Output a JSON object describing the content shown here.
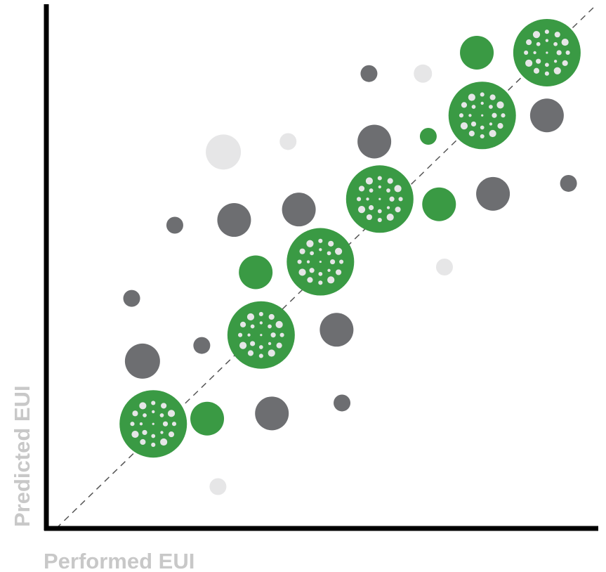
{
  "chart_data": {
    "type": "scatter",
    "title": "",
    "xlabel": "Performed EUI",
    "ylabel": "Predicted EUI",
    "xlim": [
      0,
      100
    ],
    "ylim": [
      0,
      100
    ],
    "grid": false,
    "legend": "none",
    "reference_line": {
      "style": "dashed",
      "from": [
        0,
        0
      ],
      "to": [
        100,
        100
      ]
    },
    "colors": {
      "axis": "#000000",
      "axis_label": "#c8c8c8",
      "reference_line": "#555555",
      "accent_green": "#3a9a44",
      "dark_gray": "#6d6e71",
      "light_gray": "#e6e6e7",
      "marker_icon": "#e6e6e7"
    },
    "points": [
      {
        "x": 18,
        "y": 20,
        "size": 48,
        "color": "accent_green",
        "icon": "dot-burst-icon"
      },
      {
        "x": 38,
        "y": 37,
        "size": 48,
        "color": "accent_green",
        "icon": "dot-burst-icon"
      },
      {
        "x": 49,
        "y": 51,
        "size": 48,
        "color": "accent_green",
        "icon": "dot-burst-icon"
      },
      {
        "x": 60,
        "y": 63,
        "size": 48,
        "color": "accent_green",
        "icon": "dot-burst-icon"
      },
      {
        "x": 79,
        "y": 79,
        "size": 48,
        "color": "accent_green",
        "icon": "dot-burst-icon"
      },
      {
        "x": 91,
        "y": 91,
        "size": 48,
        "color": "accent_green",
        "icon": "dot-burst-icon"
      },
      {
        "x": 28,
        "y": 21,
        "size": 24,
        "color": "accent_green"
      },
      {
        "x": 37,
        "y": 49,
        "size": 24,
        "color": "accent_green"
      },
      {
        "x": 71,
        "y": 62,
        "size": 24,
        "color": "accent_green"
      },
      {
        "x": 78,
        "y": 91,
        "size": 24,
        "color": "accent_green"
      },
      {
        "x": 69,
        "y": 75,
        "size": 12,
        "color": "accent_green"
      },
      {
        "x": 16,
        "y": 32,
        "size": 25,
        "color": "dark_gray"
      },
      {
        "x": 14,
        "y": 44,
        "size": 12,
        "color": "dark_gray"
      },
      {
        "x": 27,
        "y": 35,
        "size": 12,
        "color": "dark_gray"
      },
      {
        "x": 22,
        "y": 58,
        "size": 12,
        "color": "dark_gray"
      },
      {
        "x": 33,
        "y": 59,
        "size": 24,
        "color": "dark_gray"
      },
      {
        "x": 45,
        "y": 61,
        "size": 24,
        "color": "dark_gray"
      },
      {
        "x": 59,
        "y": 74,
        "size": 24,
        "color": "dark_gray"
      },
      {
        "x": 58,
        "y": 87,
        "size": 12,
        "color": "dark_gray"
      },
      {
        "x": 40,
        "y": 22,
        "size": 24,
        "color": "dark_gray"
      },
      {
        "x": 52,
        "y": 38,
        "size": 24,
        "color": "dark_gray"
      },
      {
        "x": 53,
        "y": 24,
        "size": 12,
        "color": "dark_gray"
      },
      {
        "x": 81,
        "y": 64,
        "size": 24,
        "color": "dark_gray"
      },
      {
        "x": 91,
        "y": 79,
        "size": 24,
        "color": "dark_gray"
      },
      {
        "x": 95,
        "y": 66,
        "size": 12,
        "color": "dark_gray"
      },
      {
        "x": 31,
        "y": 72,
        "size": 25,
        "color": "light_gray"
      },
      {
        "x": 43,
        "y": 74,
        "size": 12,
        "color": "light_gray"
      },
      {
        "x": 68,
        "y": 87,
        "size": 13,
        "color": "light_gray"
      },
      {
        "x": 72,
        "y": 50,
        "size": 12,
        "color": "light_gray"
      },
      {
        "x": 30,
        "y": 8,
        "size": 12,
        "color": "light_gray"
      }
    ]
  }
}
